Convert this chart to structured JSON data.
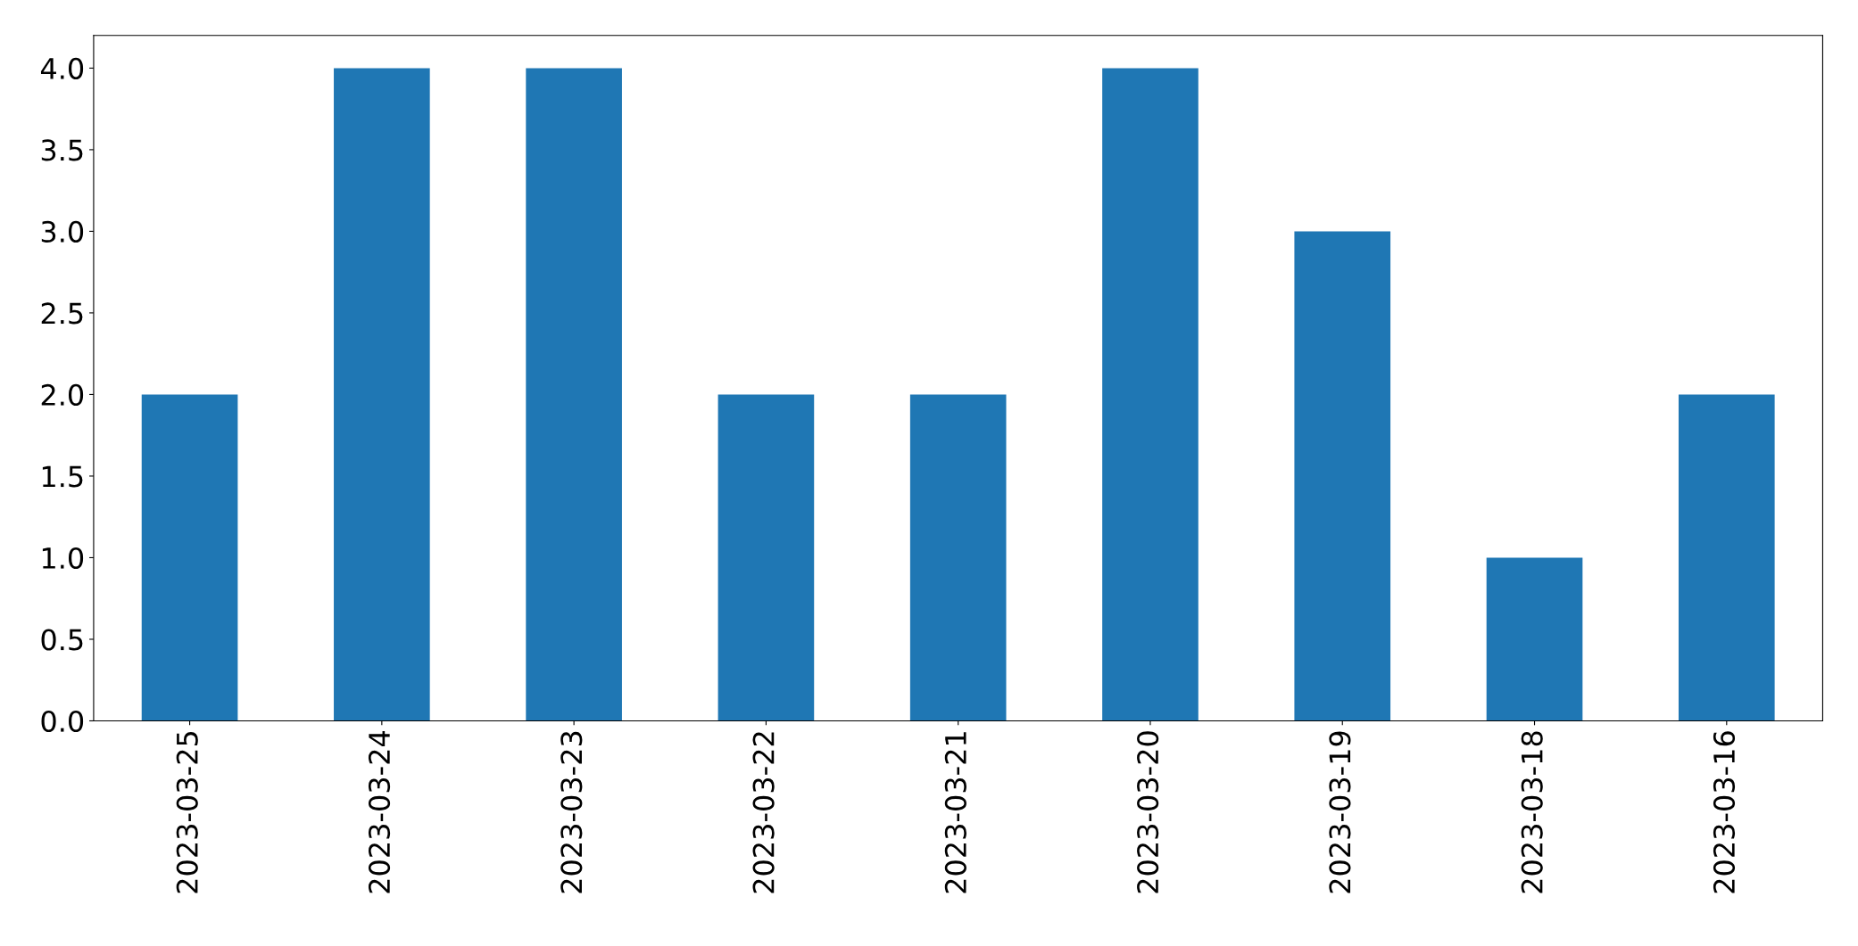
{
  "chart_data": {
    "type": "bar",
    "categories": [
      "2023-03-25",
      "2023-03-24",
      "2023-03-23",
      "2023-03-22",
      "2023-03-21",
      "2023-03-20",
      "2023-03-19",
      "2023-03-18",
      "2023-03-16"
    ],
    "values": [
      2,
      4,
      4,
      2,
      2,
      4,
      3,
      1,
      2
    ],
    "color": "#1f77b4",
    "ylim": [
      0,
      4.2
    ],
    "yticks": [
      {
        "value": 0,
        "label": "0.0"
      },
      {
        "value": 0.5,
        "label": "0.5"
      },
      {
        "value": 1,
        "label": "1.0"
      },
      {
        "value": 1.5,
        "label": "1.5"
      },
      {
        "value": 2,
        "label": "2.0"
      },
      {
        "value": 2.5,
        "label": "2.5"
      },
      {
        "value": 3,
        "label": "3.0"
      },
      {
        "value": 3.5,
        "label": "3.5"
      },
      {
        "value": 4,
        "label": "4.0"
      }
    ],
    "grid": false,
    "legend": false
  }
}
